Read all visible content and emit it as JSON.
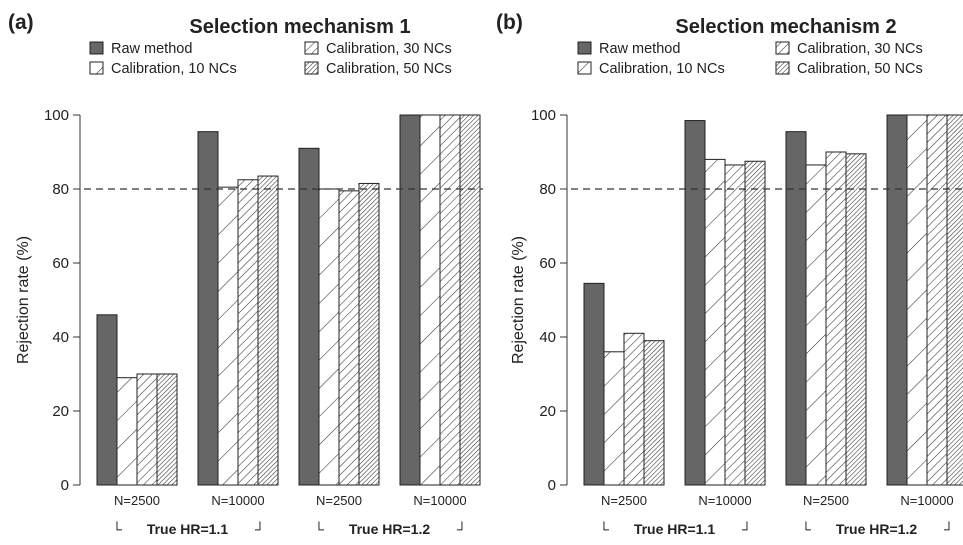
{
  "chart_data": [
    {
      "type": "bar",
      "panel_label": "(a)",
      "title": "Selection mechanism 1",
      "ylabel": "Rejection rate (%)",
      "ylim": [
        0,
        100
      ],
      "yticks": [
        0,
        20,
        40,
        60,
        80,
        100
      ],
      "reference_line": 80,
      "categories": [
        "N=2500",
        "N=10000",
        "N=2500",
        "N=10000"
      ],
      "groups": [
        {
          "label": "True HR=1.1",
          "left_mark": "└",
          "right_mark": "┘"
        },
        {
          "label": "True HR=1.2",
          "left_mark": "└",
          "right_mark": "┘"
        }
      ],
      "series": [
        {
          "name": "Raw method",
          "values": [
            46,
            95.5,
            91,
            100
          ]
        },
        {
          "name": "Calibration, 10 NCs",
          "values": [
            29,
            80.5,
            80,
            100
          ]
        },
        {
          "name": "Calibration, 30 NCs",
          "values": [
            30,
            82.5,
            79.5,
            100
          ]
        },
        {
          "name": "Calibration, 50 NCs",
          "values": [
            30,
            83.5,
            81.5,
            100
          ]
        }
      ],
      "legend_position": "top"
    },
    {
      "type": "bar",
      "panel_label": "(b)",
      "title": "Selection mechanism 2",
      "ylabel": "Rejection rate (%)",
      "ylim": [
        0,
        100
      ],
      "yticks": [
        0,
        20,
        40,
        60,
        80,
        100
      ],
      "reference_line": 80,
      "categories": [
        "N=2500",
        "N=10000",
        "N=2500",
        "N=10000"
      ],
      "groups": [
        {
          "label": "True HR=1.1",
          "left_mark": "└",
          "right_mark": "┘"
        },
        {
          "label": "True HR=1.2",
          "left_mark": "└",
          "right_mark": "┘"
        }
      ],
      "series": [
        {
          "name": "Raw method",
          "values": [
            54.5,
            98.5,
            95.5,
            100
          ]
        },
        {
          "name": "Calibration, 10 NCs",
          "values": [
            36,
            88,
            86.5,
            100
          ]
        },
        {
          "name": "Calibration, 30 NCs",
          "values": [
            41,
            86.5,
            90,
            100
          ]
        },
        {
          "name": "Calibration, 50 NCs",
          "values": [
            39,
            87.5,
            89.5,
            100
          ]
        }
      ],
      "legend_position": "top"
    }
  ],
  "colors": {
    "raw_fill": "#666666",
    "bar_stroke": "#222222",
    "hatch": "#333333",
    "reference_line": "#333333"
  }
}
